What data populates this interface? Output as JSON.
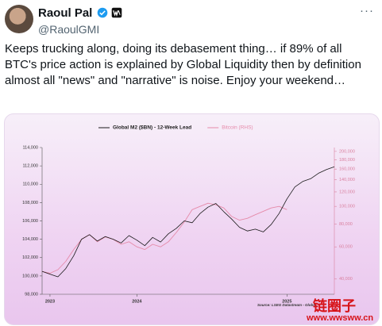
{
  "header": {
    "name": "Raoul Pal",
    "handle": "@RaoulGMI",
    "more": "···"
  },
  "tweet": {
    "text": "Keeps trucking along, doing its debasement thing… if 89% of all BTC's price action is explained by Global Liquidity then by definition almost all \"news\" and \"narrative\" is noise. Enjoy your weekend…"
  },
  "chart_data": {
    "type": "line",
    "categories": [
      null,
      "2023",
      null,
      null,
      null,
      null,
      null,
      null,
      null,
      null,
      null,
      null,
      "2024",
      null,
      null,
      null,
      null,
      null,
      null,
      null,
      null,
      null,
      null,
      null,
      null,
      null,
      null,
      null,
      null,
      null,
      null,
      "2025",
      null,
      null,
      null,
      null,
      null,
      null
    ],
    "series": [
      {
        "name": "Global M2 ($BN) - 12-Week Lead",
        "color": "#1a1a1a",
        "values": [
          100500,
          100200,
          99900,
          100800,
          102200,
          104000,
          104500,
          103800,
          104300,
          104000,
          103600,
          104400,
          103900,
          103300,
          104200,
          103700,
          104600,
          105200,
          106000,
          105800,
          106800,
          107500,
          107900,
          107000,
          106200,
          105300,
          104900,
          105100,
          104800,
          105600,
          106800,
          108400,
          109700,
          110300,
          110600,
          111200,
          111600,
          111900
        ]
      },
      {
        "name": "Bitcoin (RHS)",
        "color": "#e58aa9",
        "axis": "y2",
        "values": [
          44000,
          43000,
          45000,
          50000,
          58000,
          66000,
          70000,
          64000,
          68000,
          66000,
          62000,
          64000,
          60000,
          58000,
          62000,
          60000,
          64000,
          72000,
          82000,
          96000,
          100000,
          104000,
          102000,
          98000,
          88000,
          84000,
          86000,
          90000,
          94000,
          98000,
          100000,
          96000,
          null,
          null,
          null,
          null,
          null,
          null
        ]
      }
    ],
    "ylim": [
      98000,
      114000
    ],
    "yticks": [
      {
        "value": 98000,
        "label": "98,000"
      },
      {
        "value": 100000,
        "label": "100,000"
      },
      {
        "value": 102000,
        "label": "102,000"
      },
      {
        "value": 104000,
        "label": "104,000"
      },
      {
        "value": 106000,
        "label": "106,000"
      },
      {
        "value": 108000,
        "label": "108,000"
      },
      {
        "value": 110000,
        "label": "110,000"
      },
      {
        "value": 112000,
        "label": "112,000"
      },
      {
        "value": 114000,
        "label": "114,000"
      }
    ],
    "y2lim": [
      33000,
      210000
    ],
    "y2log": true,
    "y2ticks": [
      {
        "value": 40000,
        "label": "40,000"
      },
      {
        "value": 60000,
        "label": "60,000"
      },
      {
        "value": 80000,
        "label": "80,000"
      },
      {
        "value": 100000,
        "label": "100,000"
      },
      {
        "value": 120000,
        "label": "120,000"
      },
      {
        "value": 140000,
        "label": "140,000"
      },
      {
        "value": 160000,
        "label": "160,000"
      },
      {
        "value": 180000,
        "label": "180,000"
      },
      {
        "value": 200000,
        "label": "200,000"
      }
    ],
    "y2color": "#d9809f",
    "grid": false,
    "source": "Source: LSEG Datastream - Global"
  },
  "watermark": {
    "title": "链圈子",
    "url": "www.wwsww.cn"
  }
}
